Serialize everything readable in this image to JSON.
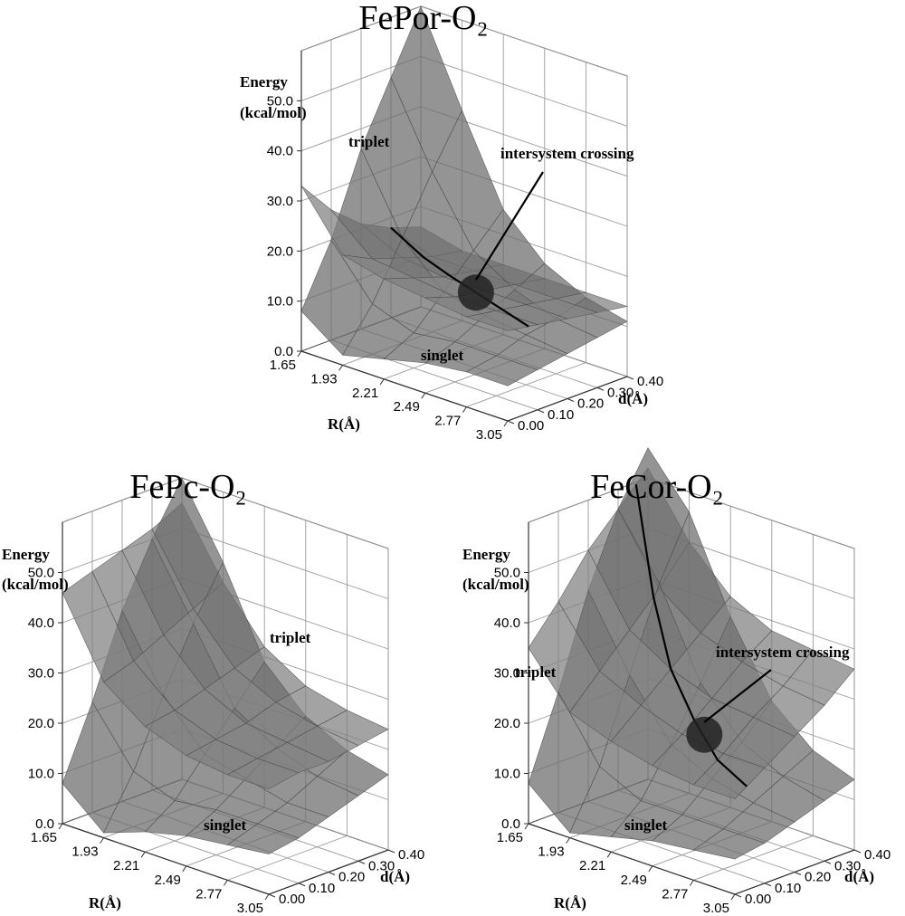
{
  "chart_data": [
    {
      "type": "surface3d",
      "title": "FePor-O₂",
      "zlabel": [
        "Energy",
        "(kcal/mol)"
      ],
      "xlabel": "R(Å)",
      "ylabel": "d(Å)",
      "x_ticks": [
        "1.65",
        "1.93",
        "2.21",
        "2.49",
        "2.77",
        "3.05"
      ],
      "y_ticks": [
        "0.00",
        "0.10",
        "0.20",
        "0.30",
        "0.40"
      ],
      "z_ticks": [
        "0.0",
        "10.0",
        "20.0",
        "30.0",
        "40.0",
        "50.0"
      ],
      "zlim": [
        0,
        60
      ],
      "grid": true,
      "series": [
        {
          "name": "triplet",
          "z": [
            [
              33,
              26,
              21,
              18,
              16
            ],
            [
              22,
              19,
              17,
              15,
              14
            ],
            [
              20,
              18,
              16,
              15,
              14
            ],
            [
              19,
              17,
              16,
              15,
              14
            ],
            [
              18,
              17,
              16,
              15,
              14
            ],
            [
              18,
              17,
              16,
              15,
              14
            ]
          ]
        },
        {
          "name": "singlet",
          "z": [
            [
              8,
              20,
              36,
              48,
              60
            ],
            [
              2,
              10,
              21,
              32,
              42
            ],
            [
              4,
              7,
              13,
              19,
              25
            ],
            [
              6,
              8,
              11,
              14,
              17
            ],
            [
              7,
              8,
              10,
              11,
              13
            ],
            [
              7,
              8,
              9,
              10,
              11
            ]
          ]
        }
      ],
      "annotations": [
        {
          "text": "triplet"
        },
        {
          "text": "singlet"
        },
        {
          "text": "intersystem crossing"
        }
      ],
      "crossing_line": [
        [
          1.65,
          0.3
        ],
        [
          1.93,
          0.27
        ],
        [
          2.21,
          0.22
        ],
        [
          2.49,
          0.17
        ],
        [
          2.77,
          0.12
        ],
        [
          3.05,
          0.07
        ]
      ],
      "crossing_point": [
        2.49,
        0.17
      ]
    },
    {
      "type": "surface3d",
      "title": "FePc-O₂",
      "zlabel": [
        "Energy",
        "(kcal/mol)"
      ],
      "xlabel": "R(Å)",
      "ylabel": "d(Å)",
      "x_ticks": [
        "1.65",
        "1.93",
        "2.21",
        "2.49",
        "2.77",
        "3.05"
      ],
      "y_ticks": [
        "0.00",
        "0.10",
        "0.20",
        "0.30",
        "0.40"
      ],
      "z_ticks": [
        "0.0",
        "10.0",
        "20.0",
        "30.0",
        "40.0",
        "50.0"
      ],
      "zlim": [
        0,
        60
      ],
      "grid": true,
      "series": [
        {
          "name": "triplet",
          "z": [
            [
              46,
              48,
              50,
              52,
              55
            ],
            [
              31,
              33,
              36,
              39,
              42
            ],
            [
              25,
              26,
              28,
              30,
              32
            ],
            [
              22,
              23,
              24,
              26,
              27
            ],
            [
              21,
              22,
              23,
              24,
              25
            ],
            [
              21,
              22,
              22,
              23,
              24
            ]
          ]
        },
        {
          "name": "singlet",
          "z": [
            [
              8,
              22,
              38,
              50,
              60
            ],
            [
              1,
              11,
              24,
              36,
              46
            ],
            [
              4,
              8,
              15,
              22,
              29
            ],
            [
              6,
              9,
              13,
              17,
              21
            ],
            [
              7,
              9,
              11,
              14,
              17
            ],
            [
              8,
              9,
              11,
              13,
              15
            ]
          ]
        }
      ],
      "annotations": [
        {
          "text": "triplet"
        },
        {
          "text": "singlet"
        }
      ]
    },
    {
      "type": "surface3d",
      "title": "FeCor-O₂",
      "zlabel": [
        "Energy",
        "(kcal/mol)"
      ],
      "xlabel": "R(Å)",
      "ylabel": "d(Å)",
      "x_ticks": [
        "1.65",
        "1.93",
        "2.21",
        "2.49",
        "2.77",
        "3.05"
      ],
      "y_ticks": [
        "0.00",
        "0.10",
        "0.20",
        "0.30",
        "0.40"
      ],
      "z_ticks": [
        "0.0",
        "10.0",
        "20.0",
        "30.0",
        "40.0",
        "50.0"
      ],
      "zlim": [
        0,
        60
      ],
      "grid": true,
      "series": [
        {
          "name": "triplet",
          "z": [
            [
              35,
              42,
              50,
              56,
              62
            ],
            [
              25,
              31,
              37,
              43,
              50
            ],
            [
              22,
              27,
              32,
              37,
              42
            ],
            [
              20,
              24,
              29,
              34,
              38
            ],
            [
              19,
              23,
              28,
              32,
              37
            ],
            [
              19,
              23,
              27,
              31,
              36
            ]
          ]
        },
        {
          "name": "singlet",
          "z": [
            [
              8,
              24,
              42,
              56,
              66
            ],
            [
              1,
              12,
              28,
              44,
              56
            ],
            [
              3,
              8,
              17,
              27,
              38
            ],
            [
              5,
              8,
              13,
              18,
              24
            ],
            [
              6,
              8,
              11,
              14,
              17
            ],
            [
              7,
              8,
              10,
              12,
              14
            ]
          ]
        }
      ],
      "annotations": [
        {
          "text": "triplet"
        },
        {
          "text": "singlet"
        },
        {
          "text": "intersystem crossing"
        }
      ],
      "crossing_line": [
        [
          1.65,
          0.36
        ],
        [
          1.93,
          0.28
        ],
        [
          2.21,
          0.2
        ],
        [
          2.49,
          0.14
        ],
        [
          2.77,
          0.08
        ],
        [
          3.05,
          0.04
        ]
      ],
      "crossing_point": [
        2.6,
        0.12
      ]
    }
  ]
}
